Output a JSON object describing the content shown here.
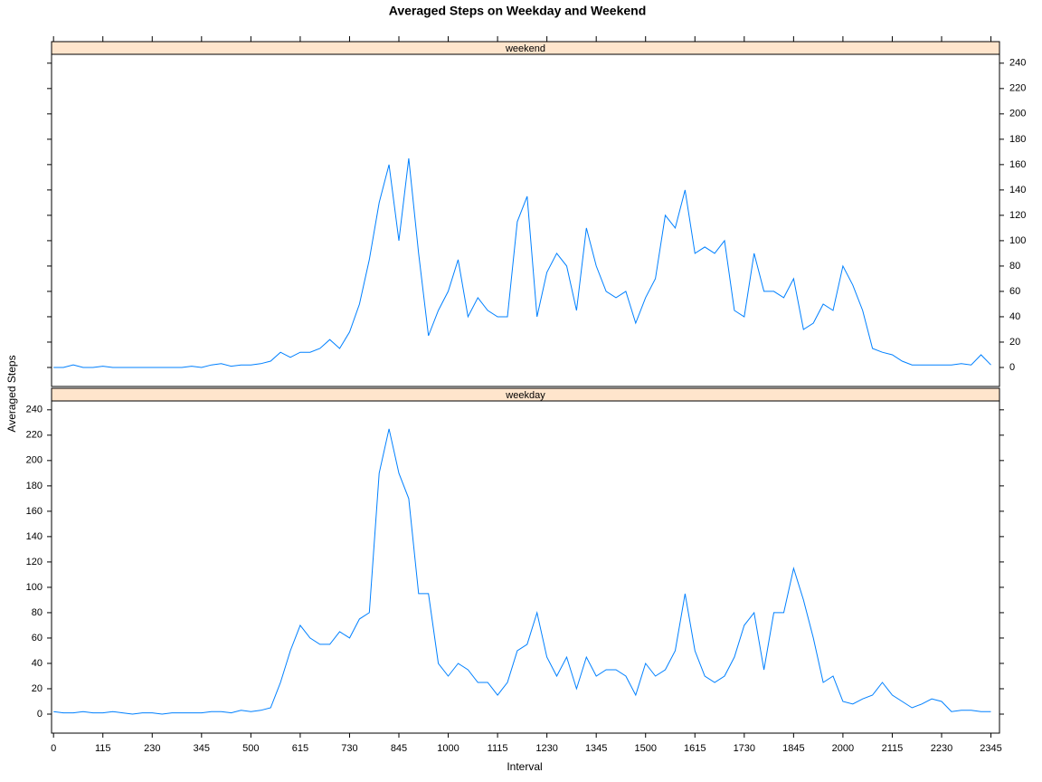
{
  "chart_data": {
    "type": "line",
    "layout": "panels",
    "title": "Averaged Steps on Weekday and Weekend",
    "x_label": "Interval",
    "y_label": "Averaged Steps",
    "x": [
      0,
      15,
      30,
      45,
      60,
      75,
      90,
      105,
      120,
      135,
      150,
      165,
      180,
      195,
      210,
      225,
      240,
      255,
      270,
      285,
      300,
      315,
      330,
      345,
      360,
      375,
      390,
      405,
      420,
      435,
      450,
      465,
      480,
      495,
      510,
      525,
      540,
      555,
      570,
      585,
      600,
      615,
      630,
      645,
      660,
      675,
      690,
      705,
      720,
      735,
      750,
      765,
      780,
      795,
      810,
      825,
      840,
      855,
      870,
      885,
      900,
      915,
      930,
      945,
      960,
      975,
      990,
      1005,
      1020,
      1035,
      1050,
      1065,
      1080,
      1095,
      1110,
      1125,
      1140,
      1155,
      1170,
      1185,
      1200,
      1215,
      1230,
      1245,
      1260,
      1275,
      1290,
      1305,
      1320,
      1335,
      1350,
      1365,
      1380,
      1395,
      1410,
      1425
    ],
    "xlim": [
      -3,
      1438
    ],
    "xticks": [
      0,
      {
        "value": 75,
        "label": "115"
      },
      {
        "value": 150,
        "label": "230"
      },
      {
        "value": 225,
        "label": "345"
      },
      {
        "value": 300,
        "label": "500"
      },
      {
        "value": 375,
        "label": "615"
      },
      {
        "value": 450,
        "label": "730"
      },
      {
        "value": 525,
        "label": "845"
      },
      {
        "value": 600,
        "label": "1000"
      },
      {
        "value": 675,
        "label": "1115"
      },
      {
        "value": 750,
        "label": "1230"
      },
      {
        "value": 825,
        "label": "1345"
      },
      {
        "value": 900,
        "label": "1500"
      },
      {
        "value": 975,
        "label": "1615"
      },
      {
        "value": 1050,
        "label": "1730"
      },
      {
        "value": 1125,
        "label": "1845"
      },
      {
        "value": 1200,
        "label": "2000"
      },
      {
        "value": 1275,
        "label": "2115"
      },
      {
        "value": 1350,
        "label": "2230"
      },
      {
        "value": 1425,
        "label": "2345"
      }
    ],
    "ylim": [
      -15,
      247
    ],
    "yticks": [
      0,
      20,
      40,
      60,
      80,
      100,
      120,
      140,
      160,
      180,
      200,
      220,
      240
    ],
    "series": [
      {
        "name": "weekend",
        "color": "#0080ff",
        "values": [
          0,
          0,
          2,
          0,
          0,
          1,
          0,
          0,
          0,
          0,
          0,
          0,
          0,
          0,
          1,
          0,
          2,
          3,
          1,
          2,
          2,
          3,
          5,
          12,
          8,
          12,
          12,
          15,
          22,
          15,
          28,
          50,
          85,
          130,
          160,
          100,
          165,
          90,
          25,
          45,
          60,
          85,
          40,
          55,
          45,
          40,
          40,
          115,
          135,
          40,
          75,
          90,
          80,
          45,
          110,
          80,
          60,
          55,
          60,
          35,
          55,
          70,
          120,
          110,
          140,
          90,
          95,
          90,
          100,
          45,
          40,
          90,
          60,
          60,
          55,
          70,
          30,
          35,
          50,
          45,
          80,
          65,
          45,
          15,
          12,
          10,
          5,
          2,
          2,
          2,
          2,
          2,
          3,
          2,
          10,
          2
        ]
      },
      {
        "name": "weekday",
        "color": "#0080ff",
        "values": [
          2,
          1,
          1,
          2,
          1,
          1,
          2,
          1,
          0,
          1,
          1,
          0,
          1,
          1,
          1,
          1,
          2,
          2,
          1,
          3,
          2,
          3,
          5,
          25,
          50,
          70,
          60,
          55,
          55,
          65,
          60,
          75,
          80,
          190,
          225,
          190,
          170,
          95,
          95,
          40,
          30,
          40,
          35,
          25,
          25,
          15,
          25,
          50,
          55,
          80,
          45,
          30,
          45,
          20,
          45,
          30,
          35,
          35,
          30,
          15,
          40,
          30,
          35,
          50,
          95,
          50,
          30,
          25,
          30,
          45,
          70,
          80,
          35,
          80,
          80,
          115,
          90,
          60,
          25,
          30,
          10,
          8,
          12,
          15,
          25,
          15,
          10,
          5,
          8,
          12,
          10,
          2,
          3,
          3,
          2,
          2
        ]
      }
    ]
  }
}
